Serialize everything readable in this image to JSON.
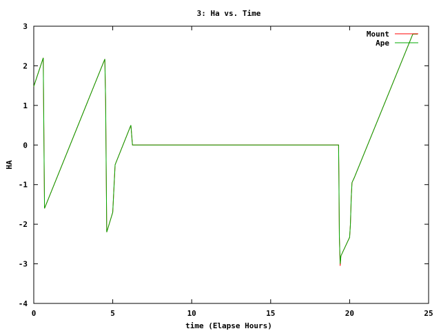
{
  "chart_data": {
    "type": "line",
    "title": "3: Ha vs. Time",
    "xlabel": "time (Elapse Hours)",
    "ylabel": "HA",
    "xlim": [
      0,
      25
    ],
    "ylim": [
      -4,
      3
    ],
    "xticks": [
      0,
      5,
      10,
      15,
      20,
      25
    ],
    "yticks": [
      -4,
      -3,
      -2,
      -1,
      0,
      1,
      2,
      3
    ],
    "grid": false,
    "legend_position": "top-right",
    "series": [
      {
        "name": "Mount",
        "color": "#ff0000",
        "points": [
          [
            0.0,
            1.48
          ],
          [
            0.6,
            2.2
          ],
          [
            0.68,
            -1.6
          ],
          [
            4.5,
            2.17
          ],
          [
            4.55,
            1.1
          ],
          [
            4.62,
            -2.2
          ],
          [
            5.0,
            -1.7
          ],
          [
            5.15,
            -0.5
          ],
          [
            6.15,
            0.5
          ],
          [
            6.25,
            0.0
          ],
          [
            19.3,
            0.0
          ],
          [
            19.32,
            -0.75
          ],
          [
            19.35,
            -2.3
          ],
          [
            19.4,
            -3.05
          ],
          [
            19.45,
            -2.8
          ],
          [
            20.0,
            -2.33
          ],
          [
            20.05,
            -2.0
          ],
          [
            20.1,
            -1.35
          ],
          [
            20.15,
            -0.95
          ],
          [
            20.3,
            -0.82
          ],
          [
            24.0,
            2.8
          ],
          [
            24.3,
            2.8
          ]
        ]
      },
      {
        "name": "Ape",
        "color": "#00aa00",
        "points": [
          [
            0.0,
            1.48
          ],
          [
            0.6,
            2.2
          ],
          [
            0.68,
            -1.6
          ],
          [
            4.5,
            2.17
          ],
          [
            4.55,
            1.1
          ],
          [
            4.62,
            -2.2
          ],
          [
            5.0,
            -1.7
          ],
          [
            5.15,
            -0.5
          ],
          [
            6.15,
            0.5
          ],
          [
            6.25,
            0.0
          ],
          [
            19.3,
            0.0
          ],
          [
            19.32,
            -0.75
          ],
          [
            19.35,
            -2.3
          ],
          [
            19.4,
            -3.0
          ],
          [
            19.45,
            -2.8
          ],
          [
            20.0,
            -2.33
          ],
          [
            20.05,
            -2.0
          ],
          [
            20.1,
            -1.35
          ],
          [
            20.15,
            -0.95
          ],
          [
            20.3,
            -0.82
          ],
          [
            24.0,
            2.8
          ],
          [
            24.3,
            2.8
          ]
        ]
      }
    ]
  }
}
